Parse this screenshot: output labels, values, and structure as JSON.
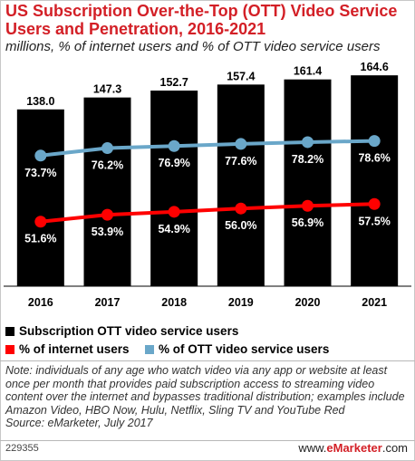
{
  "title": "US Subscription Over-the-Top (OTT) Video Service Users and Penetration, 2016-2021",
  "subtitle": "millions, % of internet users and % of OTT video service users",
  "chart_data": {
    "type": "bar",
    "categories": [
      "2016",
      "2017",
      "2018",
      "2019",
      "2020",
      "2021"
    ],
    "series": [
      {
        "name": "Subscription OTT video service users",
        "type": "bar",
        "color": "#000000",
        "values": [
          138.0,
          147.3,
          152.7,
          157.4,
          161.4,
          164.6
        ],
        "labels": [
          "138.0",
          "147.3",
          "152.7",
          "157.4",
          "161.4",
          "164.6"
        ]
      },
      {
        "name": "% of internet users",
        "type": "line",
        "color": "#ff0000",
        "values": [
          51.6,
          53.9,
          54.9,
          56.0,
          56.9,
          57.5
        ],
        "labels": [
          "51.6%",
          "53.9%",
          "54.9%",
          "56.0%",
          "56.9%",
          "57.5%"
        ]
      },
      {
        "name": "% of OTT video service users",
        "type": "line",
        "color": "#6aa7c9",
        "values": [
          73.7,
          76.2,
          76.9,
          77.6,
          78.2,
          78.6
        ],
        "labels": [
          "73.7%",
          "76.2%",
          "76.9%",
          "77.6%",
          "78.2%",
          "78.6%"
        ]
      }
    ]
  },
  "legend": {
    "bar_label": "Subscription OTT video service users",
    "line1_label": "% of internet users",
    "line2_label": "% of OTT video service users"
  },
  "note": "Note: individuals of any age who watch video via any app or website at least once per month that provides paid subscription access to streaming video content over the internet and bypasses traditional distribution; examples include Amazon Video, HBO Now, Hulu, Netflix, Sling TV and YouTube Red",
  "source": "Source: eMarketer, July 2017",
  "footer": {
    "id": "229355",
    "brand_prefix": "www.",
    "brand_name": "eMarketer",
    "brand_suffix": ".com"
  }
}
